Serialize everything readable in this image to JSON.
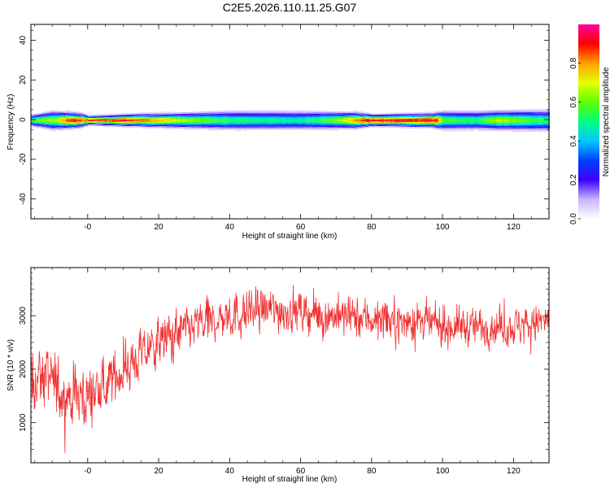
{
  "title": "C2E5.2026.110.11.25.G07",
  "chart_data": [
    {
      "type": "heatmap",
      "title": "",
      "xlabel": "Height of straight line (km)",
      "ylabel": "Frequency (Hz)",
      "xlim": [
        -16,
        130
      ],
      "ylim": [
        -50,
        48
      ],
      "xticks": [
        0,
        20,
        40,
        60,
        80,
        100,
        120
      ],
      "xtick_labels": [
        "-0",
        "20",
        "40",
        "60",
        "80",
        "100",
        "120"
      ],
      "yticks": [
        40,
        20,
        0,
        -20,
        -40
      ],
      "ytick_labels": [
        "40",
        "20",
        "0",
        "-20",
        "-40"
      ],
      "center_frequency_hz": 0,
      "band_halfwidth_hz": [
        [
          -16,
          2.5
        ],
        [
          -10,
          4
        ],
        [
          -6,
          3.5
        ],
        [
          -2,
          3
        ],
        [
          0,
          2
        ],
        [
          10,
          2.5
        ],
        [
          20,
          3
        ],
        [
          40,
          4
        ],
        [
          60,
          4
        ],
        [
          75,
          3.5
        ],
        [
          80,
          2.5
        ],
        [
          97,
          3
        ],
        [
          100,
          4
        ],
        [
          110,
          4
        ],
        [
          130,
          4.5
        ]
      ],
      "peak_amplitude": [
        [
          -16,
          0.6
        ],
        [
          -9,
          0.7
        ],
        [
          -5,
          0.95
        ],
        [
          -2,
          0.9
        ],
        [
          0,
          0.9
        ],
        [
          3,
          0.92
        ],
        [
          10,
          0.95
        ],
        [
          15,
          0.9
        ],
        [
          20,
          0.8
        ],
        [
          30,
          0.65
        ],
        [
          40,
          0.55
        ],
        [
          60,
          0.5
        ],
        [
          70,
          0.65
        ],
        [
          78,
          0.95
        ],
        [
          98,
          0.95
        ],
        [
          100,
          0.6
        ],
        [
          110,
          0.55
        ],
        [
          115,
          0.7
        ],
        [
          130,
          0.55
        ]
      ],
      "colorbar": {
        "label": "Normalized spectral amplitude",
        "min": 0.0,
        "max": 1.0,
        "ticks": [
          0.0,
          0.2,
          0.4,
          0.6,
          0.8
        ],
        "tick_labels": [
          "0.0",
          "0.2",
          "0.4",
          "0.6",
          "0.8"
        ],
        "colors": [
          "#ffffff",
          "#c8b4ff",
          "#3c00ff",
          "#0040ff",
          "#00c8ff",
          "#00ff80",
          "#60ff00",
          "#e6ff00",
          "#ffa000",
          "#ff0000",
          "#ff00a0"
        ]
      }
    },
    {
      "type": "line",
      "title": "",
      "xlabel": "Height of straight line (km)",
      "ylabel": "SNR (10 * v/v)",
      "xlim": [
        -16,
        130
      ],
      "ylim": [
        250,
        3900
      ],
      "xticks": [
        0,
        20,
        40,
        60,
        80,
        100,
        120
      ],
      "xtick_labels": [
        "-0",
        "20",
        "40",
        "60",
        "80",
        "100",
        "120"
      ],
      "yticks": [
        1000,
        2000,
        3000
      ],
      "ytick_labels": [
        "1000",
        "2000",
        "3000"
      ],
      "series": [
        {
          "color": "#f03030",
          "trend": [
            [
              -16,
              1800
            ],
            [
              -12,
              1900
            ],
            [
              -8,
              1600
            ],
            [
              -4,
              1500
            ],
            [
              0,
              1500
            ],
            [
              2,
              1550
            ],
            [
              6,
              1750
            ],
            [
              10,
              2000
            ],
            [
              15,
              2250
            ],
            [
              20,
              2500
            ],
            [
              25,
              2650
            ],
            [
              30,
              2800
            ],
            [
              35,
              2900
            ],
            [
              40,
              3000
            ],
            [
              45,
              3050
            ],
            [
              50,
              3100
            ],
            [
              55,
              3100
            ],
            [
              60,
              3050
            ],
            [
              65,
              3000
            ],
            [
              70,
              3000
            ],
            [
              75,
              2950
            ],
            [
              80,
              2950
            ],
            [
              85,
              2900
            ],
            [
              90,
              2900
            ],
            [
              95,
              2850
            ],
            [
              100,
              2800
            ],
            [
              110,
              2800
            ],
            [
              120,
              2800
            ],
            [
              130,
              2900
            ]
          ],
          "noise_amplitude": [
            [
              -16,
              550
            ],
            [
              -5,
              600
            ],
            [
              2,
              500
            ],
            [
              10,
              450
            ],
            [
              20,
              420
            ],
            [
              40,
              400
            ],
            [
              60,
              380
            ],
            [
              80,
              350
            ],
            [
              100,
              340
            ],
            [
              130,
              330
            ]
          ]
        }
      ]
    }
  ]
}
